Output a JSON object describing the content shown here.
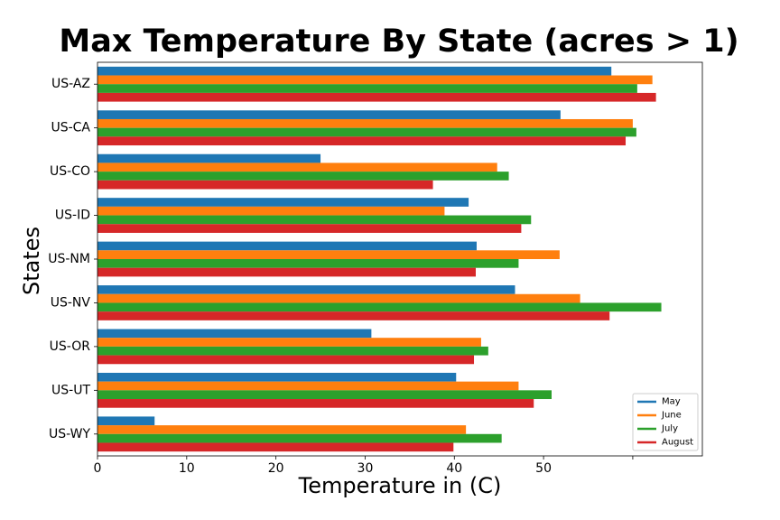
{
  "chart_data": {
    "type": "bar",
    "orientation": "horizontal",
    "title": "Max Temperature By State (acres > 1)",
    "xlabel": "Temperature in (C)",
    "ylabel": "States",
    "categories": [
      "US-AZ",
      "US-CA",
      "US-CO",
      "US-ID",
      "US-NM",
      "US-NV",
      "US-OR",
      "US-UT",
      "US-WY"
    ],
    "xlim": [
      0,
      67.8
    ],
    "xticks": [
      "0",
      "10",
      "20",
      "30",
      "40",
      "50",
      ""
    ],
    "xtick_values": [
      0,
      10,
      20,
      30,
      40,
      50,
      60
    ],
    "grid": false,
    "legend_position": "lower-right",
    "series": [
      {
        "name": "May",
        "color": "#1f77b4",
        "values": [
          57.6,
          51.9,
          25.0,
          41.6,
          42.5,
          46.8,
          30.7,
          40.2,
          6.4
        ]
      },
      {
        "name": "June",
        "color": "#ff7f0e",
        "values": [
          62.2,
          60.0,
          44.8,
          38.9,
          51.8,
          54.1,
          43.0,
          47.2,
          41.3
        ]
      },
      {
        "name": "July",
        "color": "#2ca02c",
        "values": [
          60.5,
          60.4,
          46.1,
          48.6,
          47.2,
          63.2,
          43.8,
          50.9,
          45.3
        ]
      },
      {
        "name": "August",
        "color": "#d62728",
        "values": [
          62.6,
          59.2,
          37.6,
          47.5,
          42.4,
          57.4,
          42.2,
          48.9,
          39.9
        ]
      }
    ]
  }
}
